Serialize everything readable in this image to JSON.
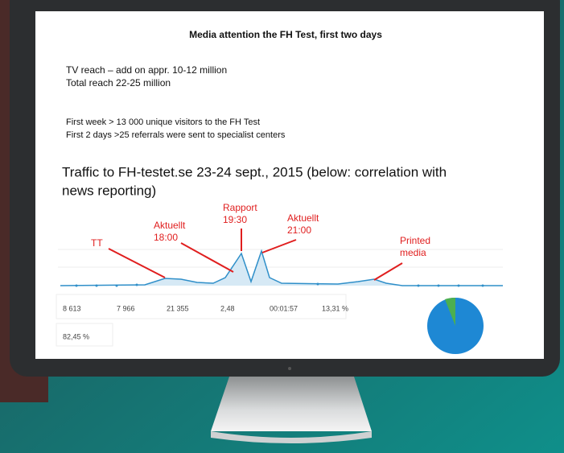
{
  "slide": {
    "title": "Media attention the FH Test, first two days",
    "lines_1": [
      "TV reach – add on appr. 10-12 million",
      "Total reach 22-25 million"
    ],
    "lines_2": [
      "First week > 13 000 unique visitors to the FH Test",
      "First 2 days >25 referrals were sent to specialist centers"
    ],
    "traffic_heading": [
      "Traffic to FH-testet.se 23-24 sept., 2015 (below: correlation with",
      "news reporting)"
    ],
    "annotations": [
      [
        "TT"
      ],
      [
        "Aktuellt",
        "18:00"
      ],
      [
        "Rapport",
        "19:30"
      ],
      [
        "Aktuellt",
        "21:00"
      ],
      [
        "Printed",
        "media"
      ]
    ],
    "stats": [
      "8 613",
      "7 966",
      "21 355",
      "2,48",
      "00:01:57",
      "13,31 %",
      "82,45 %"
    ]
  }
}
